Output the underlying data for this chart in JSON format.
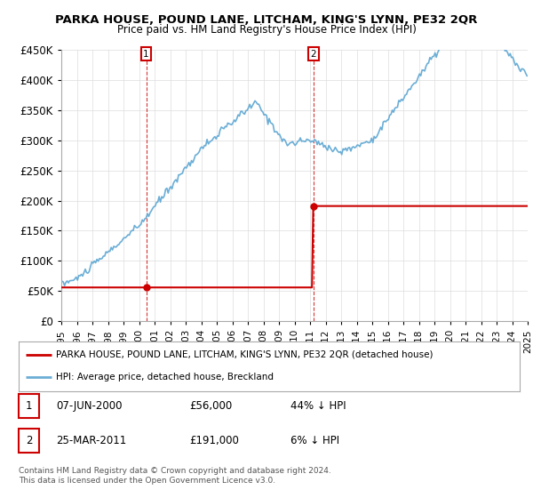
{
  "title": "PARKA HOUSE, POUND LANE, LITCHAM, KING'S LYNN, PE32 2QR",
  "subtitle": "Price paid vs. HM Land Registry's House Price Index (HPI)",
  "ylim": [
    0,
    450000
  ],
  "yticks": [
    0,
    50000,
    100000,
    150000,
    200000,
    250000,
    300000,
    350000,
    400000,
    450000
  ],
  "ytick_labels": [
    "£0",
    "£50K",
    "£100K",
    "£150K",
    "£200K",
    "£250K",
    "£300K",
    "£350K",
    "£400K",
    "£450K"
  ],
  "hpi_color": "#6baed6",
  "price_color": "#cc0000",
  "vline_color": "#cc0000",
  "marker1_price": 56000,
  "marker2_price": 191000,
  "marker1_year": 2000.458,
  "marker2_year": 2011.208,
  "legend_entry1": "PARKA HOUSE, POUND LANE, LITCHAM, KING'S LYNN, PE32 2QR (detached house)",
  "legend_entry2": "HPI: Average price, detached house, Breckland",
  "table_row1": [
    "1",
    "07-JUN-2000",
    "£56,000",
    "44% ↓ HPI"
  ],
  "table_row2": [
    "2",
    "25-MAR-2011",
    "£191,000",
    "6% ↓ HPI"
  ],
  "footnote": "Contains HM Land Registry data © Crown copyright and database right 2024.\nThis data is licensed under the Open Government Licence v3.0.",
  "background_color": "#ffffff"
}
